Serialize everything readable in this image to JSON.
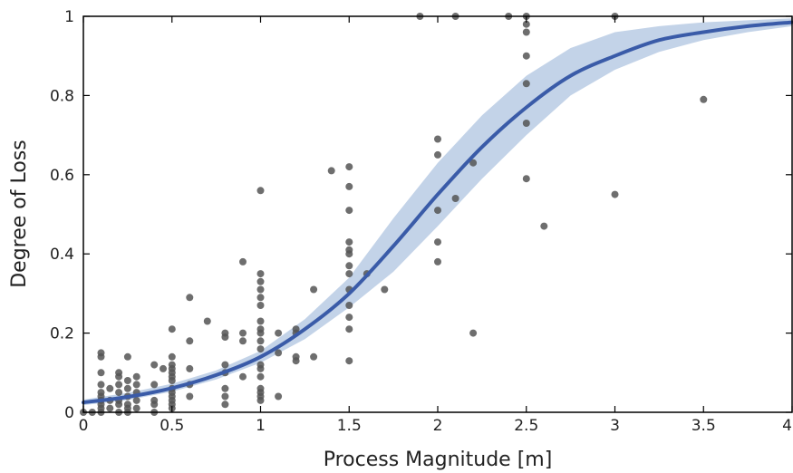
{
  "chart_data": {
    "type": "scatter",
    "title": "",
    "xlabel": "Process Magnitude [m]",
    "ylabel": "Degree of Loss",
    "xlim": [
      0,
      4
    ],
    "ylim": [
      0,
      1
    ],
    "x_ticks": [
      0,
      0.5,
      1,
      1.5,
      2,
      2.5,
      3,
      3.5,
      4
    ],
    "x_tick_labels": [
      "0",
      "0.5",
      "1",
      "1.5",
      "2",
      "2.5",
      "3",
      "3.5",
      "4"
    ],
    "y_ticks": [
      0,
      0.2,
      0.4,
      0.6,
      0.8,
      1
    ],
    "y_tick_labels": [
      "0",
      "0.2",
      "0.4",
      "0.6",
      "0.8",
      "1"
    ],
    "grid": false,
    "colors": {
      "points": "#555555",
      "curve": "#3a5ba8",
      "band": "#c3d3e8",
      "axes": "#000000"
    },
    "points": [
      [
        0.0,
        0.0
      ],
      [
        0.05,
        0.0
      ],
      [
        0.1,
        0.15
      ],
      [
        0.1,
        0.14
      ],
      [
        0.1,
        0.1
      ],
      [
        0.1,
        0.07
      ],
      [
        0.1,
        0.05
      ],
      [
        0.1,
        0.04
      ],
      [
        0.1,
        0.03
      ],
      [
        0.1,
        0.02
      ],
      [
        0.1,
        0.01
      ],
      [
        0.1,
        0.0
      ],
      [
        0.15,
        0.06
      ],
      [
        0.15,
        0.03
      ],
      [
        0.15,
        0.01
      ],
      [
        0.2,
        0.1
      ],
      [
        0.2,
        0.09
      ],
      [
        0.2,
        0.07
      ],
      [
        0.2,
        0.05
      ],
      [
        0.2,
        0.03
      ],
      [
        0.2,
        0.02
      ],
      [
        0.2,
        0.0
      ],
      [
        0.25,
        0.14
      ],
      [
        0.25,
        0.08
      ],
      [
        0.25,
        0.06
      ],
      [
        0.25,
        0.04
      ],
      [
        0.25,
        0.02
      ],
      [
        0.25,
        0.01
      ],
      [
        0.25,
        0.0
      ],
      [
        0.3,
        0.09
      ],
      [
        0.3,
        0.07
      ],
      [
        0.3,
        0.05
      ],
      [
        0.3,
        0.03
      ],
      [
        0.3,
        0.01
      ],
      [
        0.4,
        0.12
      ],
      [
        0.4,
        0.07
      ],
      [
        0.4,
        0.03
      ],
      [
        0.4,
        0.02
      ],
      [
        0.4,
        0.0
      ],
      [
        0.45,
        0.11
      ],
      [
        0.5,
        0.21
      ],
      [
        0.5,
        0.14
      ],
      [
        0.5,
        0.12
      ],
      [
        0.5,
        0.11
      ],
      [
        0.5,
        0.1
      ],
      [
        0.5,
        0.09
      ],
      [
        0.5,
        0.08
      ],
      [
        0.5,
        0.06
      ],
      [
        0.5,
        0.05
      ],
      [
        0.5,
        0.04
      ],
      [
        0.5,
        0.03
      ],
      [
        0.5,
        0.02
      ],
      [
        0.5,
        0.01
      ],
      [
        0.6,
        0.29
      ],
      [
        0.6,
        0.18
      ],
      [
        0.6,
        0.11
      ],
      [
        0.6,
        0.07
      ],
      [
        0.6,
        0.04
      ],
      [
        0.7,
        0.23
      ],
      [
        0.8,
        0.2
      ],
      [
        0.8,
        0.19
      ],
      [
        0.8,
        0.12
      ],
      [
        0.8,
        0.1
      ],
      [
        0.8,
        0.06
      ],
      [
        0.8,
        0.04
      ],
      [
        0.8,
        0.02
      ],
      [
        0.9,
        0.38
      ],
      [
        0.9,
        0.2
      ],
      [
        0.9,
        0.18
      ],
      [
        0.9,
        0.09
      ],
      [
        1.0,
        0.56
      ],
      [
        1.0,
        0.35
      ],
      [
        1.0,
        0.33
      ],
      [
        1.0,
        0.31
      ],
      [
        1.0,
        0.29
      ],
      [
        1.0,
        0.27
      ],
      [
        1.0,
        0.23
      ],
      [
        1.0,
        0.21
      ],
      [
        1.0,
        0.2
      ],
      [
        1.0,
        0.18
      ],
      [
        1.0,
        0.16
      ],
      [
        1.0,
        0.12
      ],
      [
        1.0,
        0.11
      ],
      [
        1.0,
        0.09
      ],
      [
        1.0,
        0.06
      ],
      [
        1.0,
        0.05
      ],
      [
        1.0,
        0.04
      ],
      [
        1.0,
        0.03
      ],
      [
        1.1,
        0.2
      ],
      [
        1.1,
        0.15
      ],
      [
        1.1,
        0.04
      ],
      [
        1.2,
        0.21
      ],
      [
        1.2,
        0.2
      ],
      [
        1.2,
        0.14
      ],
      [
        1.2,
        0.13
      ],
      [
        1.3,
        0.31
      ],
      [
        1.3,
        0.14
      ],
      [
        1.4,
        0.61
      ],
      [
        1.5,
        0.62
      ],
      [
        1.5,
        0.57
      ],
      [
        1.5,
        0.51
      ],
      [
        1.5,
        0.43
      ],
      [
        1.5,
        0.41
      ],
      [
        1.5,
        0.4
      ],
      [
        1.5,
        0.37
      ],
      [
        1.5,
        0.35
      ],
      [
        1.5,
        0.31
      ],
      [
        1.5,
        0.27
      ],
      [
        1.5,
        0.24
      ],
      [
        1.5,
        0.21
      ],
      [
        1.5,
        0.13
      ],
      [
        1.6,
        0.35
      ],
      [
        1.7,
        0.31
      ],
      [
        1.9,
        1.0
      ],
      [
        2.0,
        0.69
      ],
      [
        2.0,
        0.65
      ],
      [
        2.0,
        0.51
      ],
      [
        2.0,
        0.43
      ],
      [
        2.0,
        0.38
      ],
      [
        2.1,
        1.0
      ],
      [
        2.1,
        0.54
      ],
      [
        2.2,
        0.63
      ],
      [
        2.2,
        0.2
      ],
      [
        2.4,
        1.0
      ],
      [
        2.5,
        1.0
      ],
      [
        2.5,
        0.98
      ],
      [
        2.5,
        0.96
      ],
      [
        2.5,
        0.9
      ],
      [
        2.5,
        0.83
      ],
      [
        2.5,
        0.73
      ],
      [
        2.5,
        0.59
      ],
      [
        2.6,
        0.47
      ],
      [
        3.0,
        1.0
      ],
      [
        3.0,
        0.55
      ],
      [
        3.5,
        0.79
      ]
    ],
    "curve": {
      "label": "",
      "x": [
        0,
        0.25,
        0.5,
        0.75,
        1.0,
        1.25,
        1.5,
        1.75,
        2.0,
        2.25,
        2.5,
        2.75,
        3.0,
        3.25,
        3.5,
        3.75,
        4.0
      ],
      "y": [
        0.025,
        0.039,
        0.061,
        0.094,
        0.14,
        0.21,
        0.3,
        0.42,
        0.55,
        0.67,
        0.77,
        0.85,
        0.9,
        0.94,
        0.96,
        0.975,
        0.985
      ],
      "lower": [
        0.018,
        0.031,
        0.052,
        0.083,
        0.125,
        0.185,
        0.265,
        0.355,
        0.47,
        0.59,
        0.7,
        0.8,
        0.865,
        0.91,
        0.94,
        0.96,
        0.975
      ],
      "upper": [
        0.032,
        0.049,
        0.072,
        0.106,
        0.155,
        0.235,
        0.34,
        0.49,
        0.63,
        0.75,
        0.85,
        0.92,
        0.96,
        0.975,
        0.985,
        0.99,
        0.995
      ]
    }
  }
}
